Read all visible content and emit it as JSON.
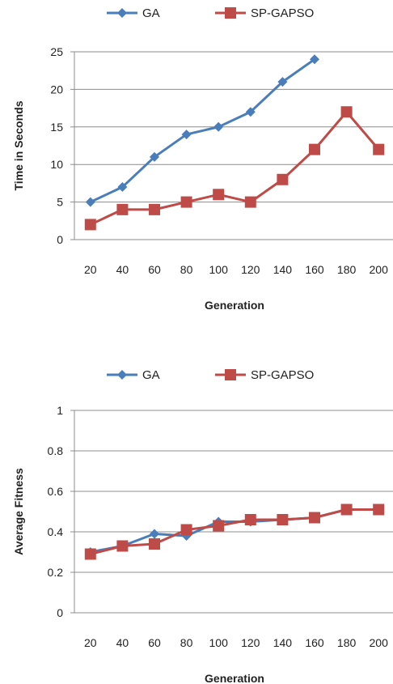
{
  "chart_data": [
    {
      "type": "line",
      "title": "",
      "xlabel": "Generation",
      "ylabel": "Time in Seconds",
      "categories": [
        "20",
        "40",
        "60",
        "80",
        "100",
        "120",
        "140",
        "160",
        "180",
        "200"
      ],
      "yticks": [
        "0",
        "5",
        "10",
        "15",
        "20",
        "25"
      ],
      "ylim": [
        0,
        25
      ],
      "grid": true,
      "legend": "top",
      "series": [
        {
          "name": "GA",
          "color": "#4a7ebb",
          "marker": "diamond",
          "values": [
            5,
            7,
            11,
            14,
            15,
            17,
            21,
            24,
            null,
            null
          ]
        },
        {
          "name": "SP-GAPSO",
          "color": "#be4b48",
          "marker": "square",
          "values": [
            2,
            4,
            4,
            5,
            6,
            5,
            8,
            12,
            17,
            12
          ]
        }
      ]
    },
    {
      "type": "line",
      "title": "",
      "xlabel": "Generation",
      "ylabel": "Average Fitness",
      "categories": [
        "20",
        "40",
        "60",
        "80",
        "100",
        "120",
        "140",
        "160",
        "180",
        "200"
      ],
      "yticks": [
        "0",
        "0.2",
        "0.4",
        "0.6",
        "0.8",
        "1"
      ],
      "ylim": [
        0,
        1
      ],
      "grid": true,
      "legend": "top",
      "series": [
        {
          "name": "GA",
          "color": "#4a7ebb",
          "marker": "diamond",
          "values": [
            0.3,
            0.33,
            0.39,
            0.38,
            0.45,
            0.45,
            0.46,
            0.47,
            0.51,
            0.51
          ]
        },
        {
          "name": "SP-GAPSO",
          "color": "#be4b48",
          "marker": "square",
          "values": [
            0.29,
            0.33,
            0.34,
            0.41,
            0.43,
            0.46,
            0.46,
            0.47,
            0.51,
            0.51
          ]
        }
      ]
    }
  ]
}
